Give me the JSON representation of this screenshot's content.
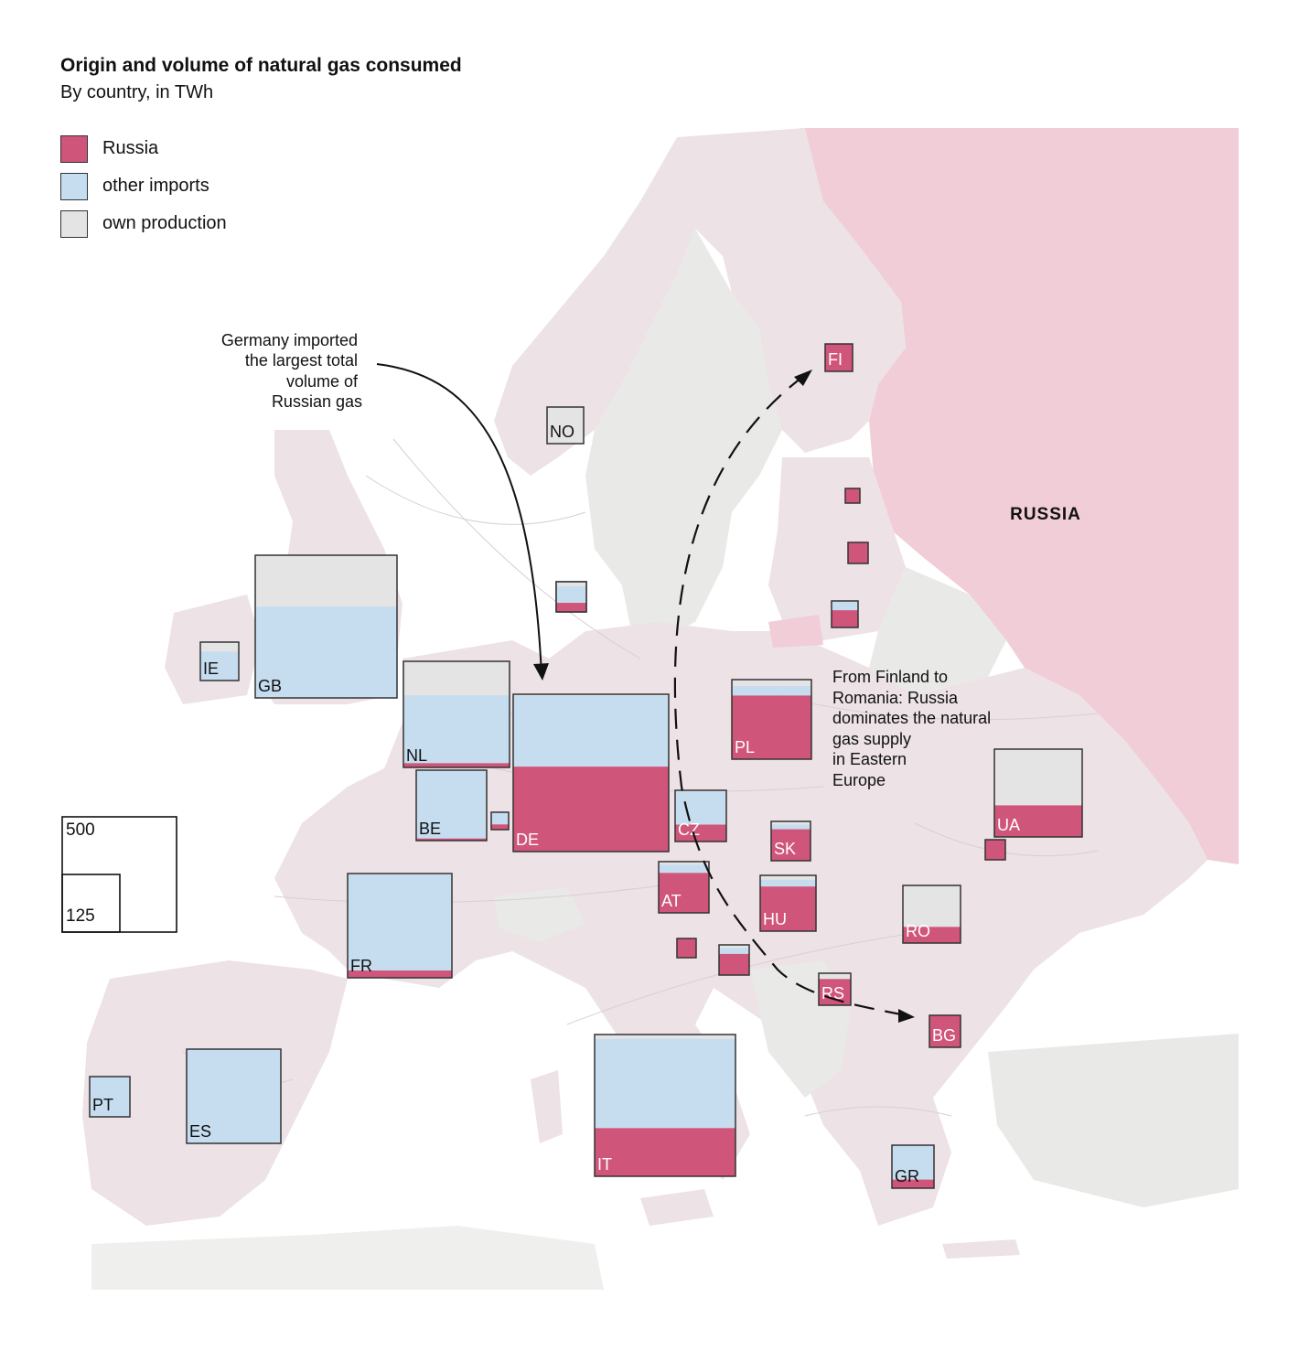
{
  "title": "Origin and volume of natural gas consumed",
  "subtitle": "By country, in TWh",
  "colors": {
    "russia": "#d0557a",
    "other_imports": "#c5ddef",
    "own_production": "#e4e4e4",
    "land": "#ede2e6",
    "russia_land": "#f0cdd7",
    "neutral_land": "#e9e9e7"
  },
  "legend": [
    {
      "label": "Russia",
      "color": "#d0557a"
    },
    {
      "label": "other imports",
      "color": "#c5ddef"
    },
    {
      "label": "own production",
      "color": "#e4e4e4"
    }
  ],
  "size_legend": {
    "large": "500",
    "small": "125"
  },
  "map_labels": {
    "russia": "RUSSIA"
  },
  "annotations": {
    "germany": [
      "Germany imported",
      "the largest total",
      "volume of",
      "Russian gas"
    ],
    "east": [
      "From Finland to",
      "Romania: Russia",
      "dominates the natural",
      "gas supply",
      "in Eastern",
      "Europe"
    ]
  },
  "countries": [
    {
      "code": "GB",
      "russia_share": 0.0,
      "other_share": 0.64,
      "own_share": 0.36
    },
    {
      "code": "IE",
      "russia_share": 0.0,
      "other_share": 0.75,
      "own_share": 0.25
    },
    {
      "code": "NL",
      "russia_share": 0.04,
      "other_share": 0.64,
      "own_share": 0.32
    },
    {
      "code": "BE",
      "russia_share": 0.03,
      "other_share": 0.97,
      "own_share": 0.0
    },
    {
      "code": "DE",
      "russia_share": 0.54,
      "other_share": 0.45,
      "own_share": 0.01
    },
    {
      "code": "FR",
      "russia_share": 0.07,
      "other_share": 0.92,
      "own_share": 0.01
    },
    {
      "code": "ES",
      "russia_share": 0.0,
      "other_share": 1.0,
      "own_share": 0.0
    },
    {
      "code": "PT",
      "russia_share": 0.0,
      "other_share": 1.0,
      "own_share": 0.0
    },
    {
      "code": "IT",
      "russia_share": 0.34,
      "other_share": 0.63,
      "own_share": 0.03
    },
    {
      "code": "NO",
      "russia_share": 0.0,
      "other_share": 0.0,
      "own_share": 1.0
    },
    {
      "code": "FI",
      "russia_share": 1.0,
      "other_share": 0.0,
      "own_share": 0.0
    },
    {
      "code": "PL",
      "russia_share": 0.8,
      "other_share": 0.12,
      "own_share": 0.08
    },
    {
      "code": "CZ",
      "russia_share": 0.33,
      "other_share": 0.65,
      "own_share": 0.02
    },
    {
      "code": "AT",
      "russia_share": 0.78,
      "other_share": 0.16,
      "own_share": 0.06
    },
    {
      "code": "SK",
      "russia_share": 0.8,
      "other_share": 0.12,
      "own_share": 0.08
    },
    {
      "code": "HU",
      "russia_share": 0.8,
      "other_share": 0.12,
      "own_share": 0.08
    },
    {
      "code": "UA",
      "russia_share": 0.36,
      "other_share": 0.0,
      "own_share": 0.64
    },
    {
      "code": "RO",
      "russia_share": 0.28,
      "other_share": 0.0,
      "own_share": 0.72
    },
    {
      "code": "RS",
      "russia_share": 0.82,
      "other_share": 0.0,
      "own_share": 0.18
    },
    {
      "code": "BG",
      "russia_share": 1.0,
      "other_share": 0.0,
      "own_share": 0.0
    },
    {
      "code": "GR",
      "russia_share": 0.2,
      "other_share": 0.8,
      "own_share": 0.0
    },
    {
      "code": "",
      "russia_share": 0.3,
      "other_share": 0.7,
      "own_share": 0.0
    },
    {
      "code": "",
      "russia_share": 0.3,
      "other_share": 0.5,
      "own_share": 0.2
    },
    {
      "code": "",
      "russia_share": 1.0,
      "other_share": 0.0,
      "own_share": 0.0
    },
    {
      "code": "",
      "russia_share": 1.0,
      "other_share": 0.0,
      "own_share": 0.0
    },
    {
      "code": "",
      "russia_share": 0.7,
      "other_share": 0.2,
      "own_share": 0.1
    },
    {
      "code": "",
      "russia_share": 0.65,
      "other_share": 0.35,
      "own_share": 0.0
    },
    {
      "code": "",
      "russia_share": 0.3,
      "other_share": 0.55,
      "own_share": 0.15
    },
    {
      "code": "",
      "russia_share": 1.0,
      "other_share": 0.0,
      "own_share": 0.0
    },
    {
      "code": "",
      "russia_share": 1.0,
      "other_share": 0.0,
      "own_share": 0.0
    }
  ]
}
